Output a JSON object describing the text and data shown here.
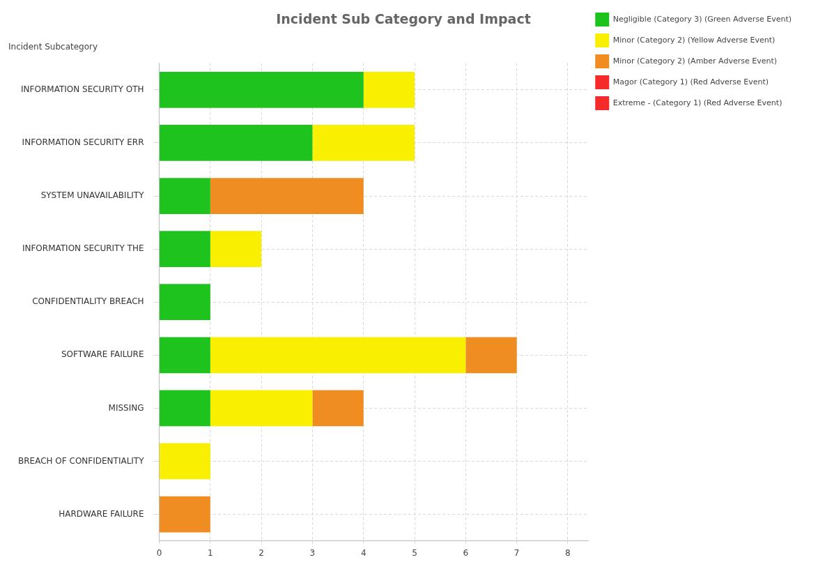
{
  "chart_data": {
    "type": "bar",
    "orientation": "horizontal",
    "stacked": true,
    "title": "Incident Sub Category and Impact",
    "ylabel": "Incident Subcategory",
    "categories": [
      "INFORMATION SECURITY OTH",
      "INFORMATION SECURITY ERR",
      "SYSTEM UNAVAILABILITY",
      "INFORMATION SECURITY THE",
      "CONFIDENTIALITY BREACH",
      "SOFTWARE FAILURE",
      "MISSING",
      "BREACH OF CONFIDENTIALITY",
      "HARDWARE FAILURE"
    ],
    "series": [
      {
        "name": "Negligible (Category 3) (Green Adverse Event)",
        "color": "#1ec31e",
        "values": [
          4,
          3,
          1,
          1,
          1,
          1,
          1,
          null,
          null
        ]
      },
      {
        "name": "Minor (Category 2) (Yellow Adverse Event)",
        "color": "#f9ef00",
        "values": [
          1,
          2,
          null,
          1,
          null,
          5,
          2,
          1,
          null
        ]
      },
      {
        "name": "Minor (Category 2) (Amber Adverse Event)",
        "color": "#ef8c22",
        "values": [
          null,
          null,
          3,
          null,
          null,
          1,
          1,
          null,
          1
        ]
      },
      {
        "name": "Magor (Category 1) (Red Adverse Event)",
        "color": "#f52a2a",
        "values": [
          null,
          null,
          null,
          null,
          null,
          null,
          null,
          null,
          null
        ]
      },
      {
        "name": "Extreme - (Category 1) (Red Adverse Event)",
        "color": "#f52a2a",
        "values": [
          null,
          null,
          null,
          null,
          null,
          null,
          null,
          null,
          null
        ]
      }
    ],
    "xlim": [
      0,
      8.4
    ],
    "xticks": [
      0,
      1,
      2,
      3,
      4,
      5,
      6,
      7,
      8
    ],
    "grid": true,
    "legend": "top right"
  }
}
